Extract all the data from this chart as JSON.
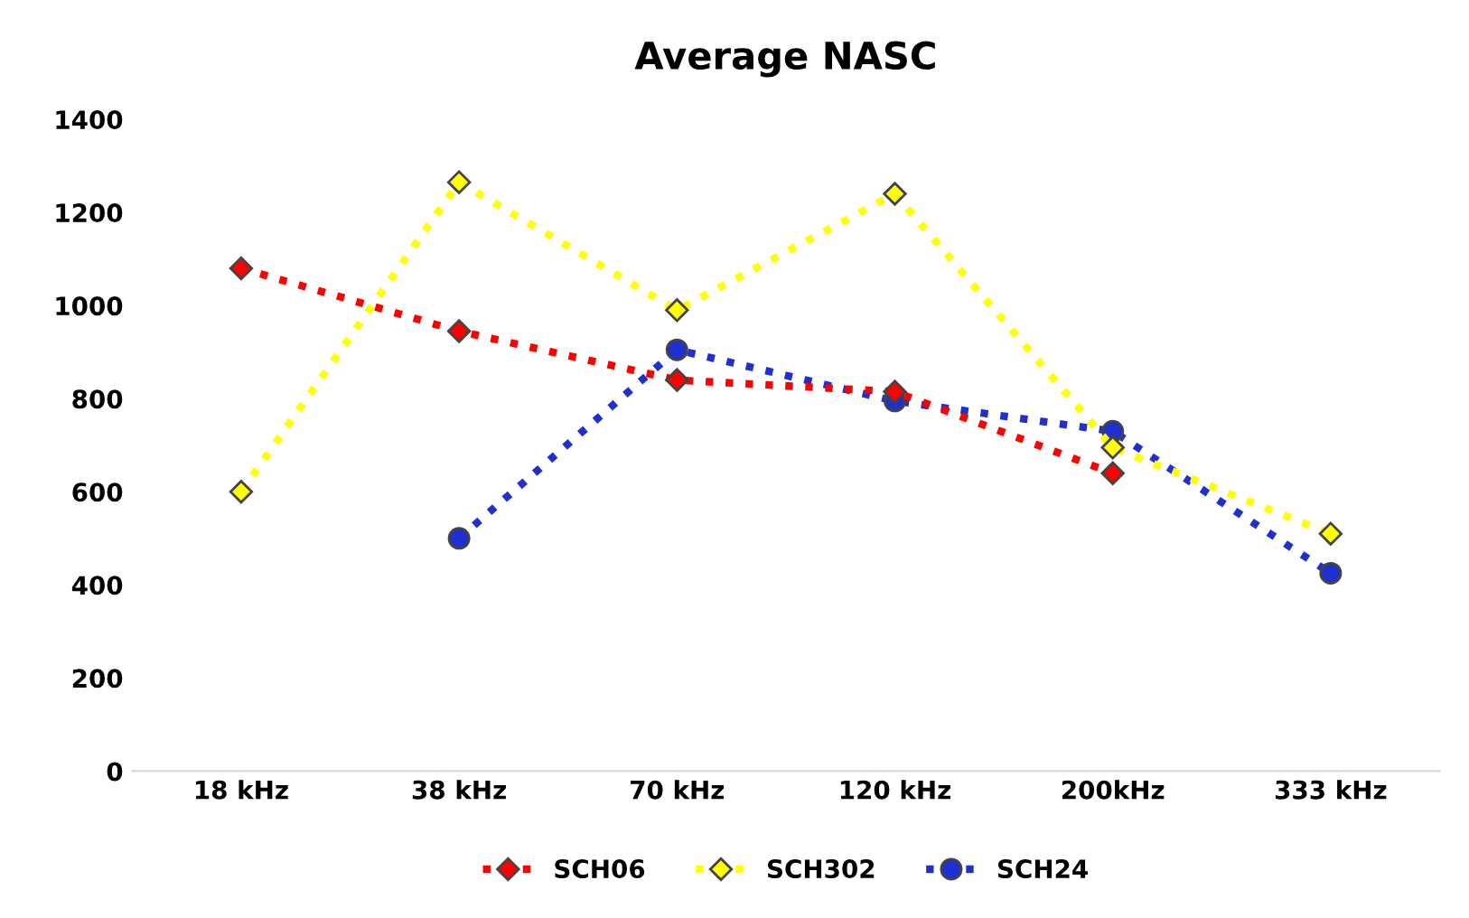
{
  "chart_data": {
    "type": "line",
    "title": "Average NASC",
    "categories": [
      "18 kHz",
      "38 kHz",
      "70 kHz",
      "120 kHz",
      "200kHz",
      "333 kHz"
    ],
    "ylim": [
      0,
      1400
    ],
    "yticks": [
      0,
      200,
      400,
      600,
      800,
      1000,
      1200,
      1400
    ],
    "grid": false,
    "legend": "bottom",
    "line_style": "dotted",
    "series": [
      {
        "name": "SCH06",
        "color": "#ff0000",
        "marker": "diamond",
        "values": [
          1080,
          945,
          840,
          815,
          640,
          null
        ]
      },
      {
        "name": "SCH302",
        "color": "#ffff00",
        "marker": "diamond",
        "values": [
          600,
          1265,
          990,
          1240,
          695,
          510
        ]
      },
      {
        "name": "SCH24",
        "color": "#1f2fd0",
        "marker": "circle",
        "values": [
          null,
          500,
          905,
          795,
          730,
          425
        ]
      }
    ]
  }
}
